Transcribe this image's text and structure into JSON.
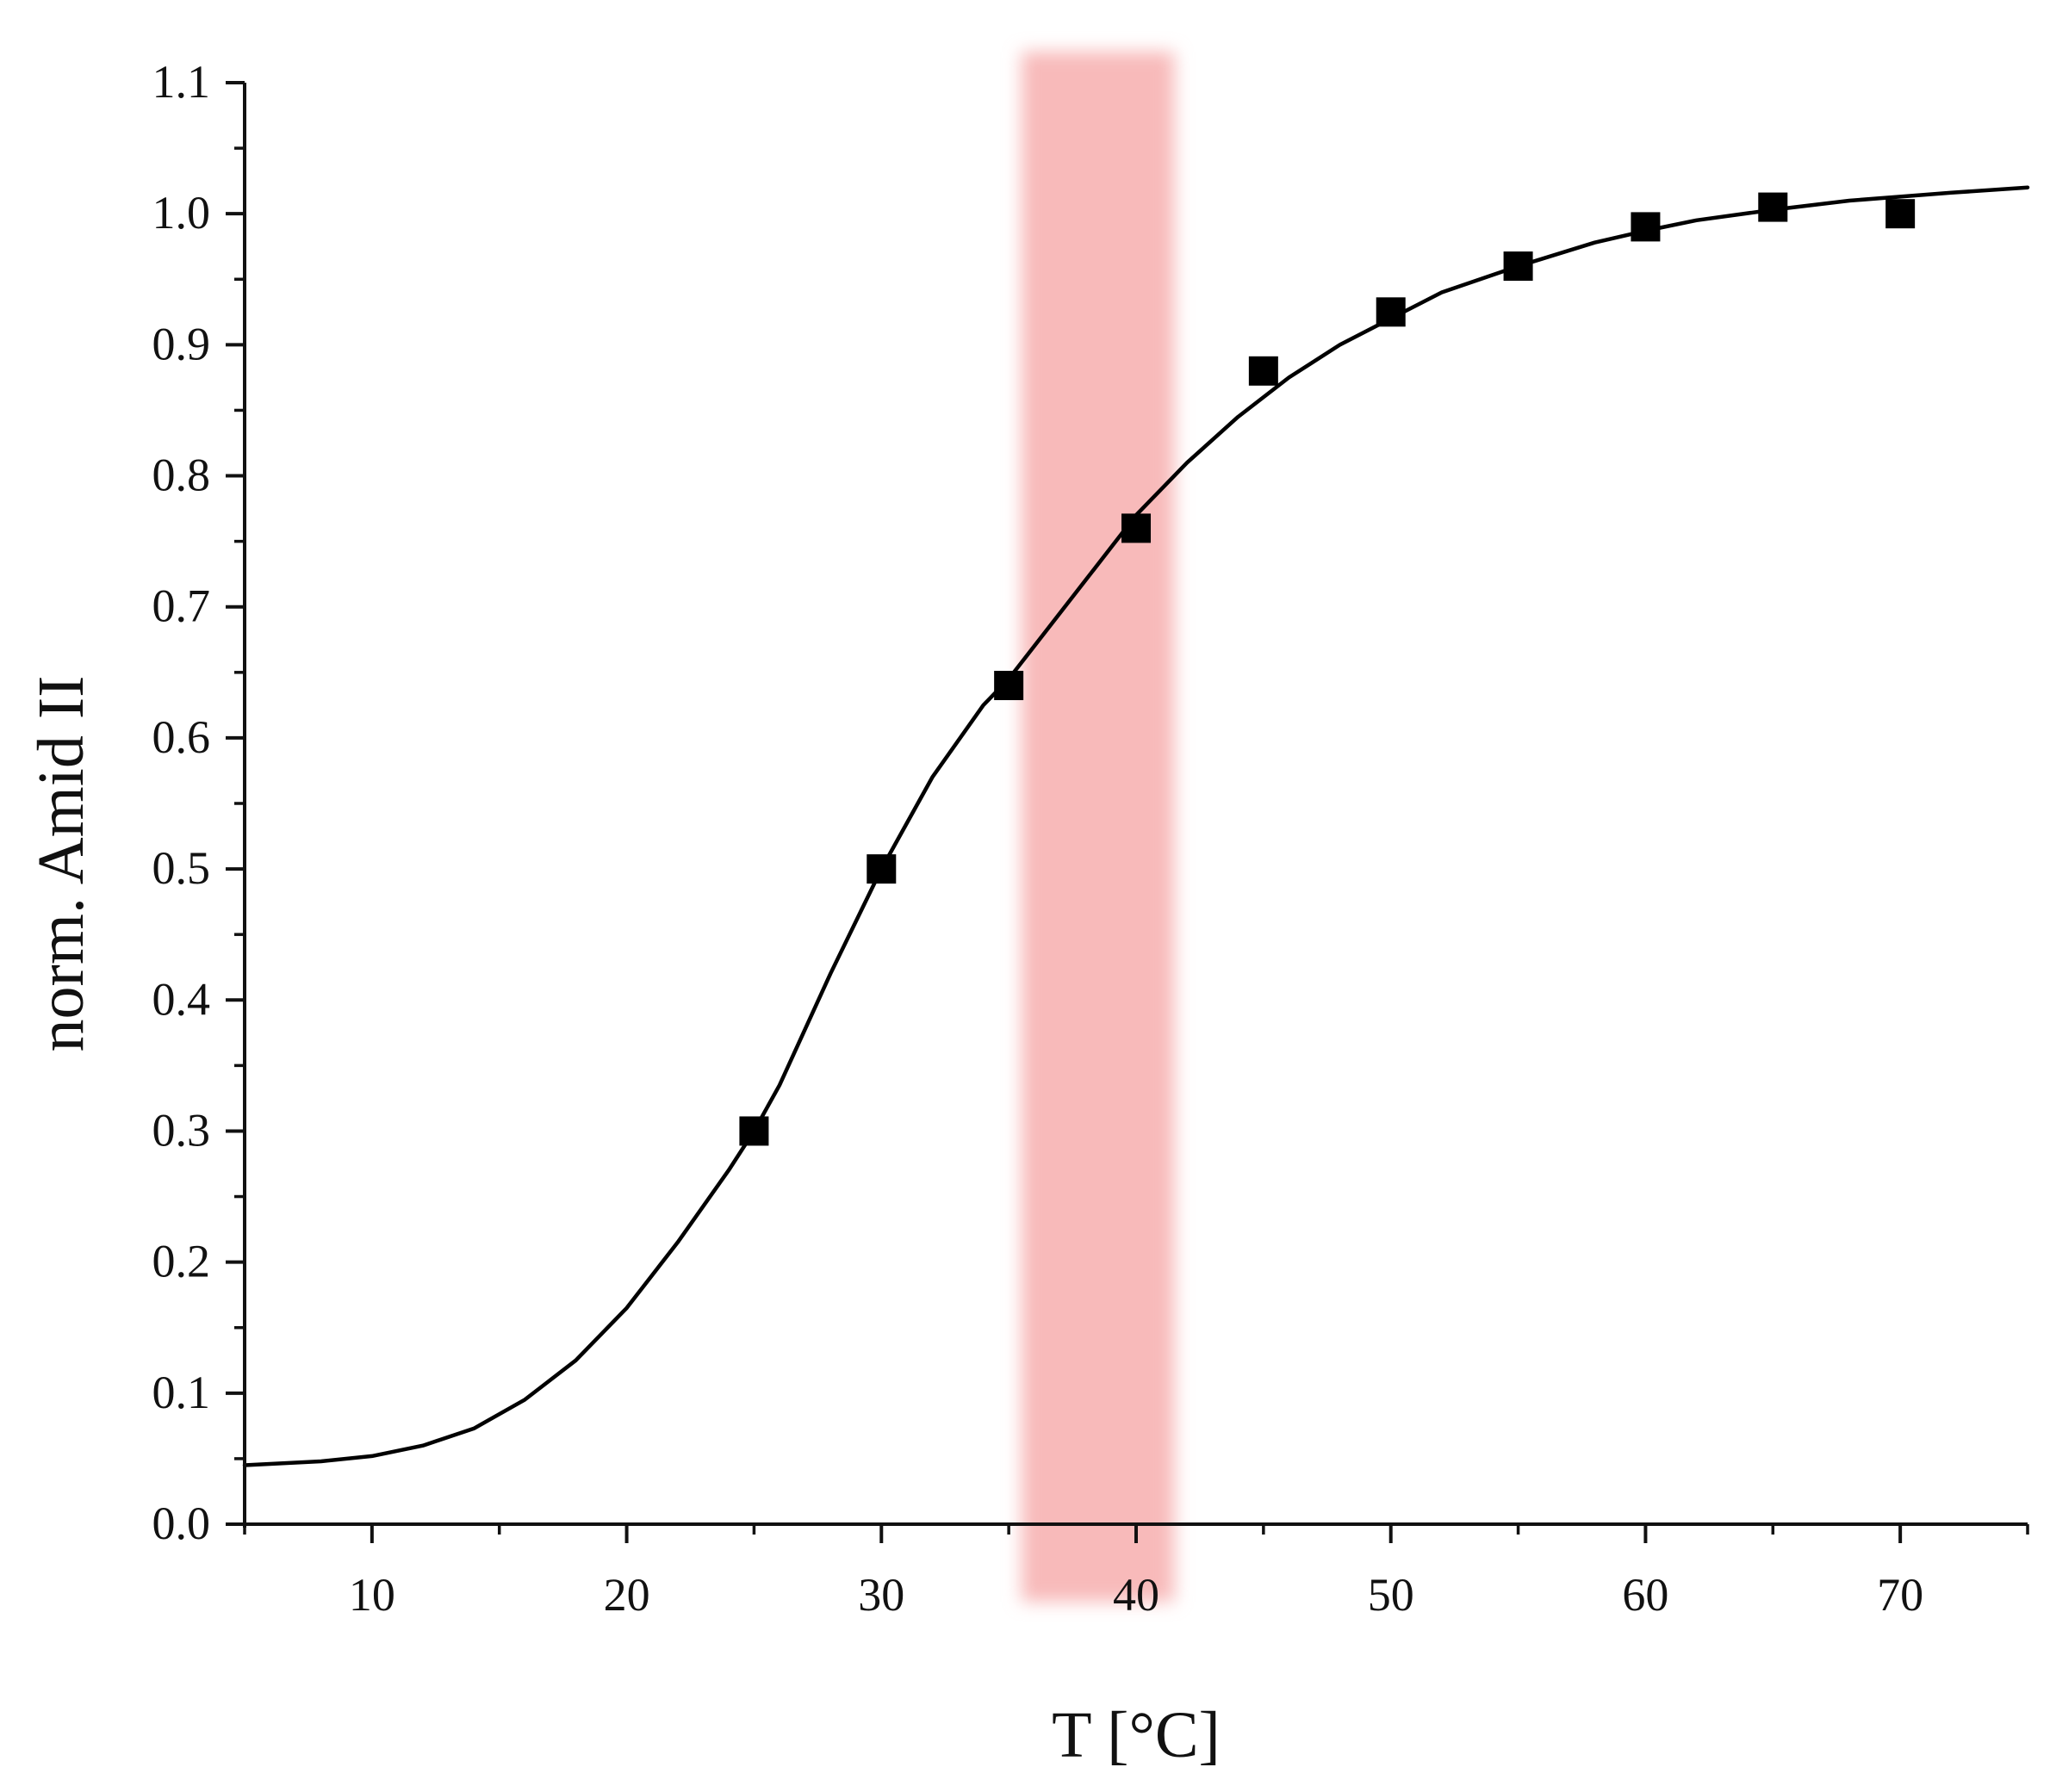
{
  "chart_data": {
    "type": "scatter",
    "title": "",
    "xlabel": "T [°C]",
    "ylabel": "norm. Amid II",
    "xlim": [
      5,
      75
    ],
    "ylim": [
      0.0,
      1.1
    ],
    "x_ticks": [
      10,
      20,
      30,
      40,
      50,
      60,
      70
    ],
    "x_tick_labels": [
      "10",
      "20",
      "30",
      "40",
      "50",
      "60",
      "70"
    ],
    "y_ticks": [
      0.0,
      0.1,
      0.2,
      0.3,
      0.4,
      0.5,
      0.6,
      0.7,
      0.8,
      0.9,
      1.0,
      1.1
    ],
    "y_tick_labels": [
      "0.0",
      "0.1",
      "0.2",
      "0.3",
      "0.4",
      "0.5",
      "0.6",
      "0.7",
      "0.8",
      "0.9",
      "1.0",
      "1.1"
    ],
    "grid": false,
    "legend": "none",
    "series": [
      {
        "kind": "scatter",
        "marker": "square",
        "color": "#000000",
        "x": [
          25,
          30,
          35,
          40,
          45,
          50,
          55,
          60,
          65,
          70
        ],
        "y": [
          0.3,
          0.5,
          0.64,
          0.76,
          0.88,
          0.925,
          0.96,
          0.99,
          1.005,
          1.0
        ]
      },
      {
        "kind": "line",
        "color": "#000000",
        "fit": "sigmoid",
        "x": [
          5,
          8,
          10,
          12,
          14,
          16,
          18,
          20,
          22,
          24,
          25,
          26,
          28,
          30,
          32,
          34,
          35,
          36,
          38,
          40,
          42,
          44,
          46,
          48,
          50,
          52,
          55,
          58,
          60,
          62,
          65,
          68,
          70,
          72,
          75
        ],
        "y": [
          0.045,
          0.048,
          0.052,
          0.06,
          0.073,
          0.095,
          0.125,
          0.165,
          0.215,
          0.27,
          0.3,
          0.335,
          0.42,
          0.5,
          0.57,
          0.625,
          0.645,
          0.67,
          0.72,
          0.77,
          0.81,
          0.845,
          0.875,
          0.9,
          0.92,
          0.94,
          0.96,
          0.978,
          0.987,
          0.995,
          1.003,
          1.01,
          1.013,
          1.016,
          1.02
        ]
      }
    ],
    "highlight_band": {
      "x_range": [
        35.5,
        41.5
      ],
      "color": "#f7b2b2"
    },
    "colors": {
      "axis": "#111111",
      "marker": "#000000",
      "band": "#f7b2b2"
    }
  }
}
